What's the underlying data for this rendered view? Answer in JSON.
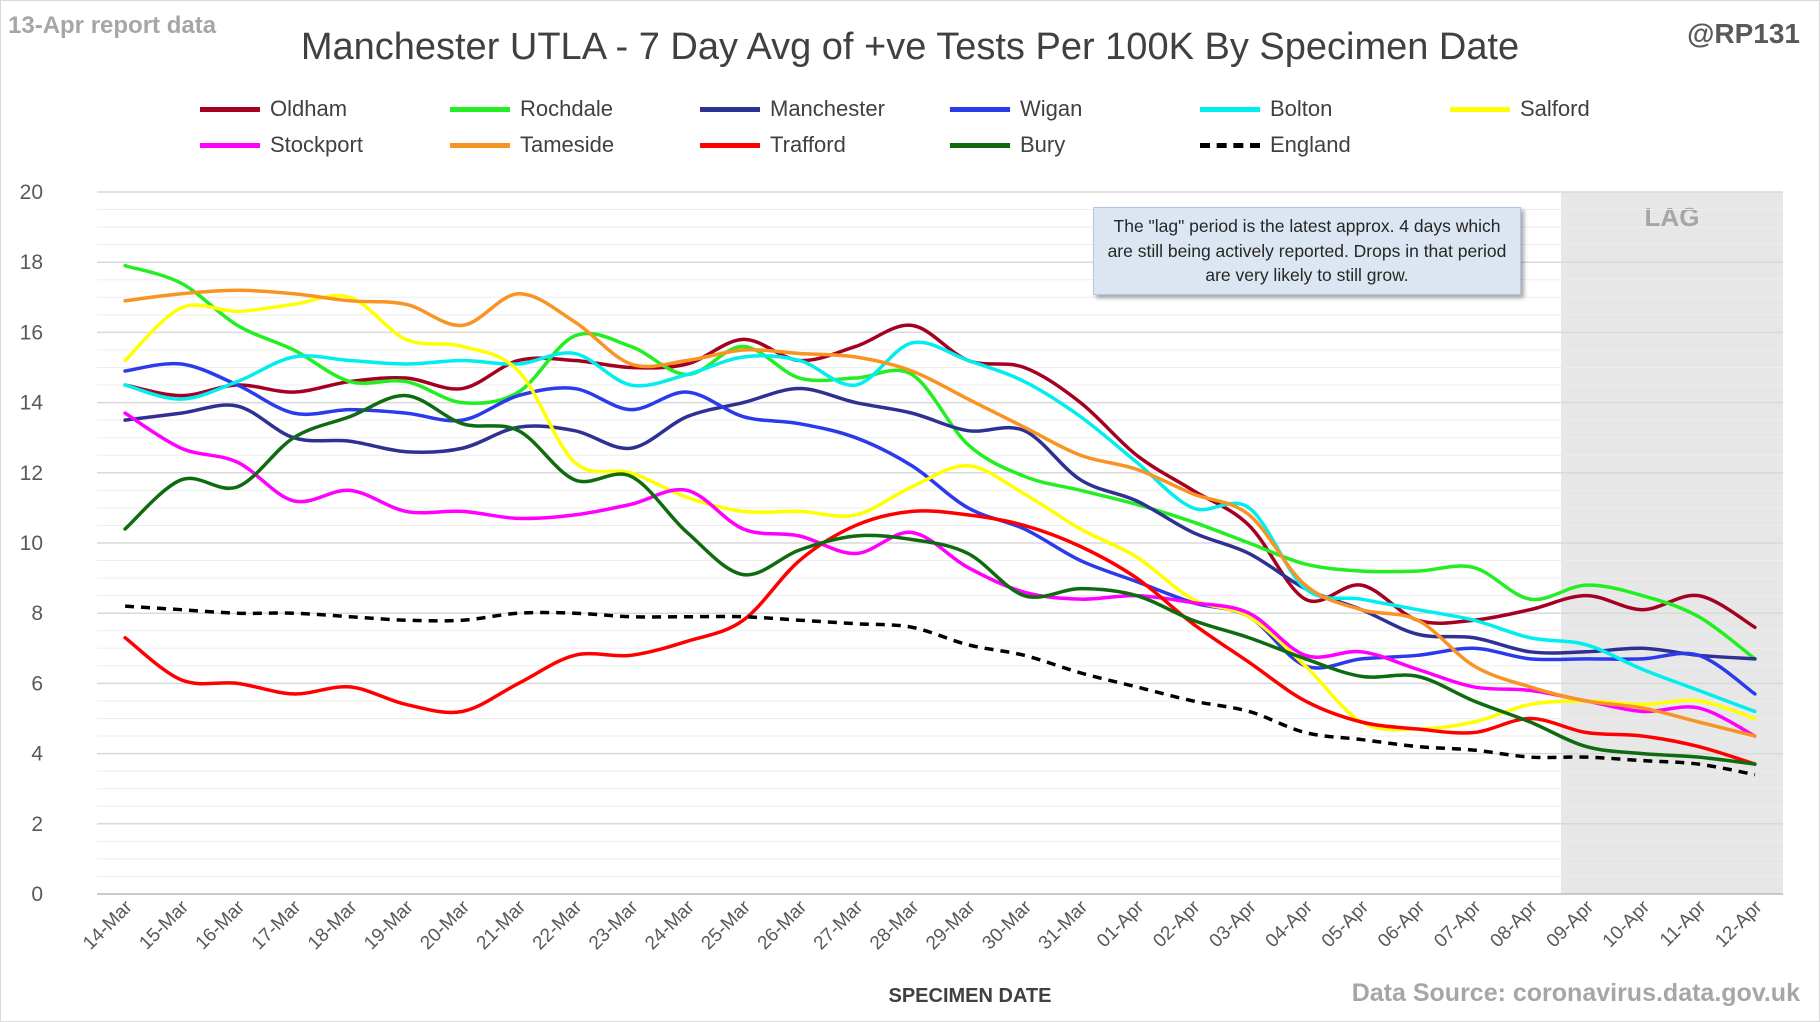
{
  "header": {
    "report_note": "13-Apr report data",
    "handle": "@RP131",
    "source": "Data Source: coronavirus.data.gov.uk"
  },
  "annotation": "The \"lag\" period is the latest approx. 4 days which are still being actively reported. Drops in that period are very likely to still grow.",
  "chart_data": {
    "type": "line",
    "title": "Manchester UTLA - 7 Day Avg of +ve Tests Per 100K By Specimen Date",
    "xlabel": "SPECIMEN DATE",
    "ylabel": "",
    "ylim": [
      0,
      20
    ],
    "yticks": [
      0,
      2,
      4,
      6,
      8,
      10,
      12,
      14,
      16,
      18,
      20
    ],
    "grid": true,
    "legend_position": "top",
    "shaded_region": {
      "label": "LAG",
      "from": "09-Apr",
      "to": "12-Apr",
      "color": "#e7e7e7"
    },
    "categories": [
      "14-Mar",
      "15-Mar",
      "16-Mar",
      "17-Mar",
      "18-Mar",
      "19-Mar",
      "20-Mar",
      "21-Mar",
      "22-Mar",
      "23-Mar",
      "24-Mar",
      "25-Mar",
      "26-Mar",
      "27-Mar",
      "28-Mar",
      "29-Mar",
      "30-Mar",
      "31-Mar",
      "01-Apr",
      "02-Apr",
      "03-Apr",
      "04-Apr",
      "05-Apr",
      "06-Apr",
      "07-Apr",
      "08-Apr",
      "09-Apr",
      "10-Apr",
      "11-Apr",
      "12-Apr"
    ],
    "series": [
      {
        "name": "Oldham",
        "color": "#a50021",
        "dash": false,
        "values": [
          14.5,
          14.2,
          14.5,
          14.3,
          14.6,
          14.7,
          14.4,
          15.2,
          15.2,
          15.0,
          15.1,
          15.8,
          15.2,
          15.6,
          16.2,
          15.2,
          15.0,
          14.0,
          12.5,
          11.5,
          10.5,
          8.4,
          8.8,
          7.8,
          7.8,
          8.1,
          8.5,
          8.1,
          8.5,
          7.6
        ]
      },
      {
        "name": "Rochdale",
        "color": "#22ee22",
        "dash": false,
        "values": [
          17.9,
          17.4,
          16.2,
          15.5,
          14.6,
          14.6,
          14.0,
          14.3,
          15.9,
          15.6,
          14.8,
          15.6,
          14.7,
          14.7,
          14.8,
          12.8,
          11.9,
          11.5,
          11.1,
          10.6,
          10.0,
          9.4,
          9.2,
          9.2,
          9.3,
          8.4,
          8.8,
          8.5,
          7.9,
          6.7
        ]
      },
      {
        "name": "Manchester",
        "color": "#2e3192",
        "dash": false,
        "values": [
          13.5,
          13.7,
          13.9,
          13.0,
          12.9,
          12.6,
          12.7,
          13.3,
          13.2,
          12.7,
          13.6,
          14.0,
          14.4,
          14.0,
          13.7,
          13.2,
          13.2,
          11.8,
          11.2,
          10.3,
          9.7,
          8.7,
          8.1,
          7.4,
          7.3,
          6.9,
          6.9,
          7.0,
          6.8,
          6.7
        ]
      },
      {
        "name": "Wigan",
        "color": "#2b3aeb",
        "dash": false,
        "values": [
          14.9,
          15.1,
          14.5,
          13.7,
          13.8,
          13.7,
          13.5,
          14.2,
          14.4,
          13.8,
          14.3,
          13.6,
          13.4,
          13.0,
          12.2,
          11.0,
          10.4,
          9.5,
          8.9,
          8.3,
          7.9,
          6.5,
          6.7,
          6.8,
          7.0,
          6.7,
          6.7,
          6.7,
          6.8,
          5.7
        ]
      },
      {
        "name": "Bolton",
        "color": "#00eeee",
        "dash": false,
        "values": [
          14.5,
          14.1,
          14.6,
          15.3,
          15.2,
          15.1,
          15.2,
          15.1,
          15.4,
          14.5,
          14.8,
          15.3,
          15.2,
          14.5,
          15.7,
          15.2,
          14.6,
          13.6,
          12.3,
          11.0,
          11.0,
          8.7,
          8.4,
          8.1,
          7.8,
          7.3,
          7.1,
          6.4,
          5.8,
          5.2
        ]
      },
      {
        "name": "Salford",
        "color": "#ffff00",
        "dash": false,
        "values": [
          15.2,
          16.7,
          16.6,
          16.8,
          17.0,
          15.8,
          15.6,
          14.9,
          12.3,
          12.0,
          11.3,
          10.9,
          10.9,
          10.8,
          11.6,
          12.2,
          11.4,
          10.4,
          9.6,
          8.4,
          7.9,
          6.5,
          4.9,
          4.7,
          4.9,
          5.4,
          5.5,
          5.4,
          5.5,
          5.0
        ]
      },
      {
        "name": "Stockport",
        "color": "#ff00ff",
        "dash": false,
        "values": [
          13.7,
          12.7,
          12.3,
          11.2,
          11.5,
          10.9,
          10.9,
          10.7,
          10.8,
          11.1,
          11.5,
          10.4,
          10.2,
          9.7,
          10.3,
          9.3,
          8.6,
          8.4,
          8.5,
          8.3,
          8.0,
          6.8,
          6.9,
          6.4,
          5.9,
          5.8,
          5.5,
          5.2,
          5.3,
          4.5
        ]
      },
      {
        "name": "Tameside",
        "color": "#f79423",
        "dash": false,
        "values": [
          16.9,
          17.1,
          17.2,
          17.1,
          16.9,
          16.8,
          16.2,
          17.1,
          16.3,
          15.1,
          15.2,
          15.5,
          15.4,
          15.3,
          14.9,
          14.1,
          13.3,
          12.5,
          12.1,
          11.4,
          10.8,
          8.8,
          8.1,
          7.8,
          6.5,
          5.9,
          5.5,
          5.3,
          4.9,
          4.5
        ]
      },
      {
        "name": "Trafford",
        "color": "#ff0000",
        "dash": false,
        "values": [
          7.3,
          6.1,
          6.0,
          5.7,
          5.9,
          5.4,
          5.2,
          6.0,
          6.8,
          6.8,
          7.2,
          7.8,
          9.5,
          10.5,
          10.9,
          10.8,
          10.5,
          9.9,
          9.0,
          7.7,
          6.6,
          5.5,
          4.9,
          4.7,
          4.6,
          5.0,
          4.6,
          4.5,
          4.2,
          3.7
        ]
      },
      {
        "name": "Bury",
        "color": "#0f6b0f",
        "dash": false,
        "values": [
          10.4,
          11.8,
          11.6,
          13.0,
          13.6,
          14.2,
          13.4,
          13.2,
          11.8,
          11.9,
          10.3,
          9.1,
          9.8,
          10.2,
          10.1,
          9.7,
          8.5,
          8.7,
          8.5,
          7.8,
          7.3,
          6.7,
          6.2,
          6.2,
          5.5,
          4.9,
          4.2,
          4.0,
          3.9,
          3.7
        ]
      },
      {
        "name": "England",
        "color": "#000000",
        "dash": true,
        "values": [
          8.2,
          8.1,
          8.0,
          8.0,
          7.9,
          7.8,
          7.8,
          8.0,
          8.0,
          7.9,
          7.9,
          7.9,
          7.8,
          7.7,
          7.6,
          7.1,
          6.8,
          6.3,
          5.9,
          5.5,
          5.2,
          4.6,
          4.4,
          4.2,
          4.1,
          3.9,
          3.9,
          3.8,
          3.7,
          3.4
        ]
      }
    ]
  }
}
